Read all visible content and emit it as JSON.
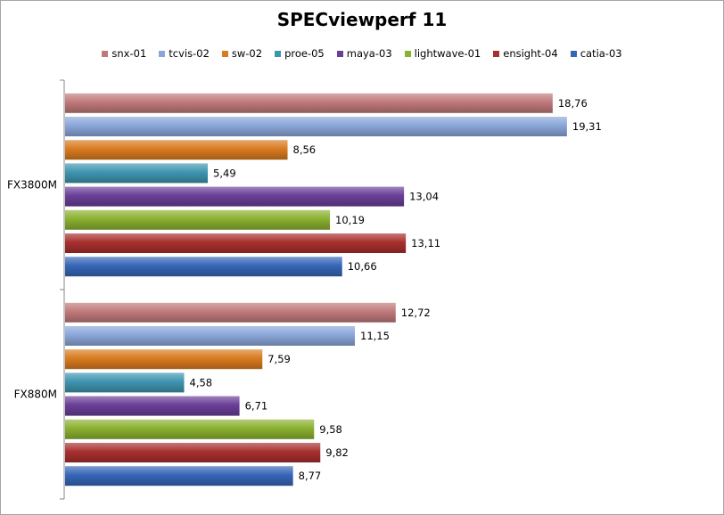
{
  "chart_data": {
    "type": "bar",
    "orientation": "horizontal",
    "title": "SPECviewperf 11",
    "categories": [
      "FX3800M",
      "FX880M"
    ],
    "legend_position": "top",
    "grid": false,
    "xlim": [
      0,
      20
    ],
    "series": [
      {
        "name": "snx-01",
        "color": "#c0797a",
        "values": [
          18.76,
          12.72
        ],
        "labels": [
          "18,76",
          "12,72"
        ]
      },
      {
        "name": "tcvis-02",
        "color": "#8aa6d9",
        "values": [
          19.31,
          11.15
        ],
        "labels": [
          "19,31",
          "11,15"
        ]
      },
      {
        "name": "sw-02",
        "color": "#d97b1f",
        "values": [
          8.56,
          7.59
        ],
        "labels": [
          "8,56",
          "7,59"
        ]
      },
      {
        "name": "proe-05",
        "color": "#3e95b0",
        "values": [
          5.49,
          4.58
        ],
        "labels": [
          "5,49",
          "4,58"
        ]
      },
      {
        "name": "maya-03",
        "color": "#6a3f98",
        "values": [
          13.04,
          6.71
        ],
        "labels": [
          "13,04",
          "6,71"
        ]
      },
      {
        "name": "lightwave-01",
        "color": "#8bb130",
        "values": [
          10.19,
          9.58
        ],
        "labels": [
          "10,19",
          "9,58"
        ]
      },
      {
        "name": "ensight-04",
        "color": "#a8302e",
        "values": [
          13.11,
          9.82
        ],
        "labels": [
          "13,11",
          "9,82"
        ]
      },
      {
        "name": "catia-03",
        "color": "#3666b8",
        "values": [
          10.66,
          8.77
        ],
        "labels": [
          "10,66",
          "8,77"
        ]
      }
    ]
  }
}
